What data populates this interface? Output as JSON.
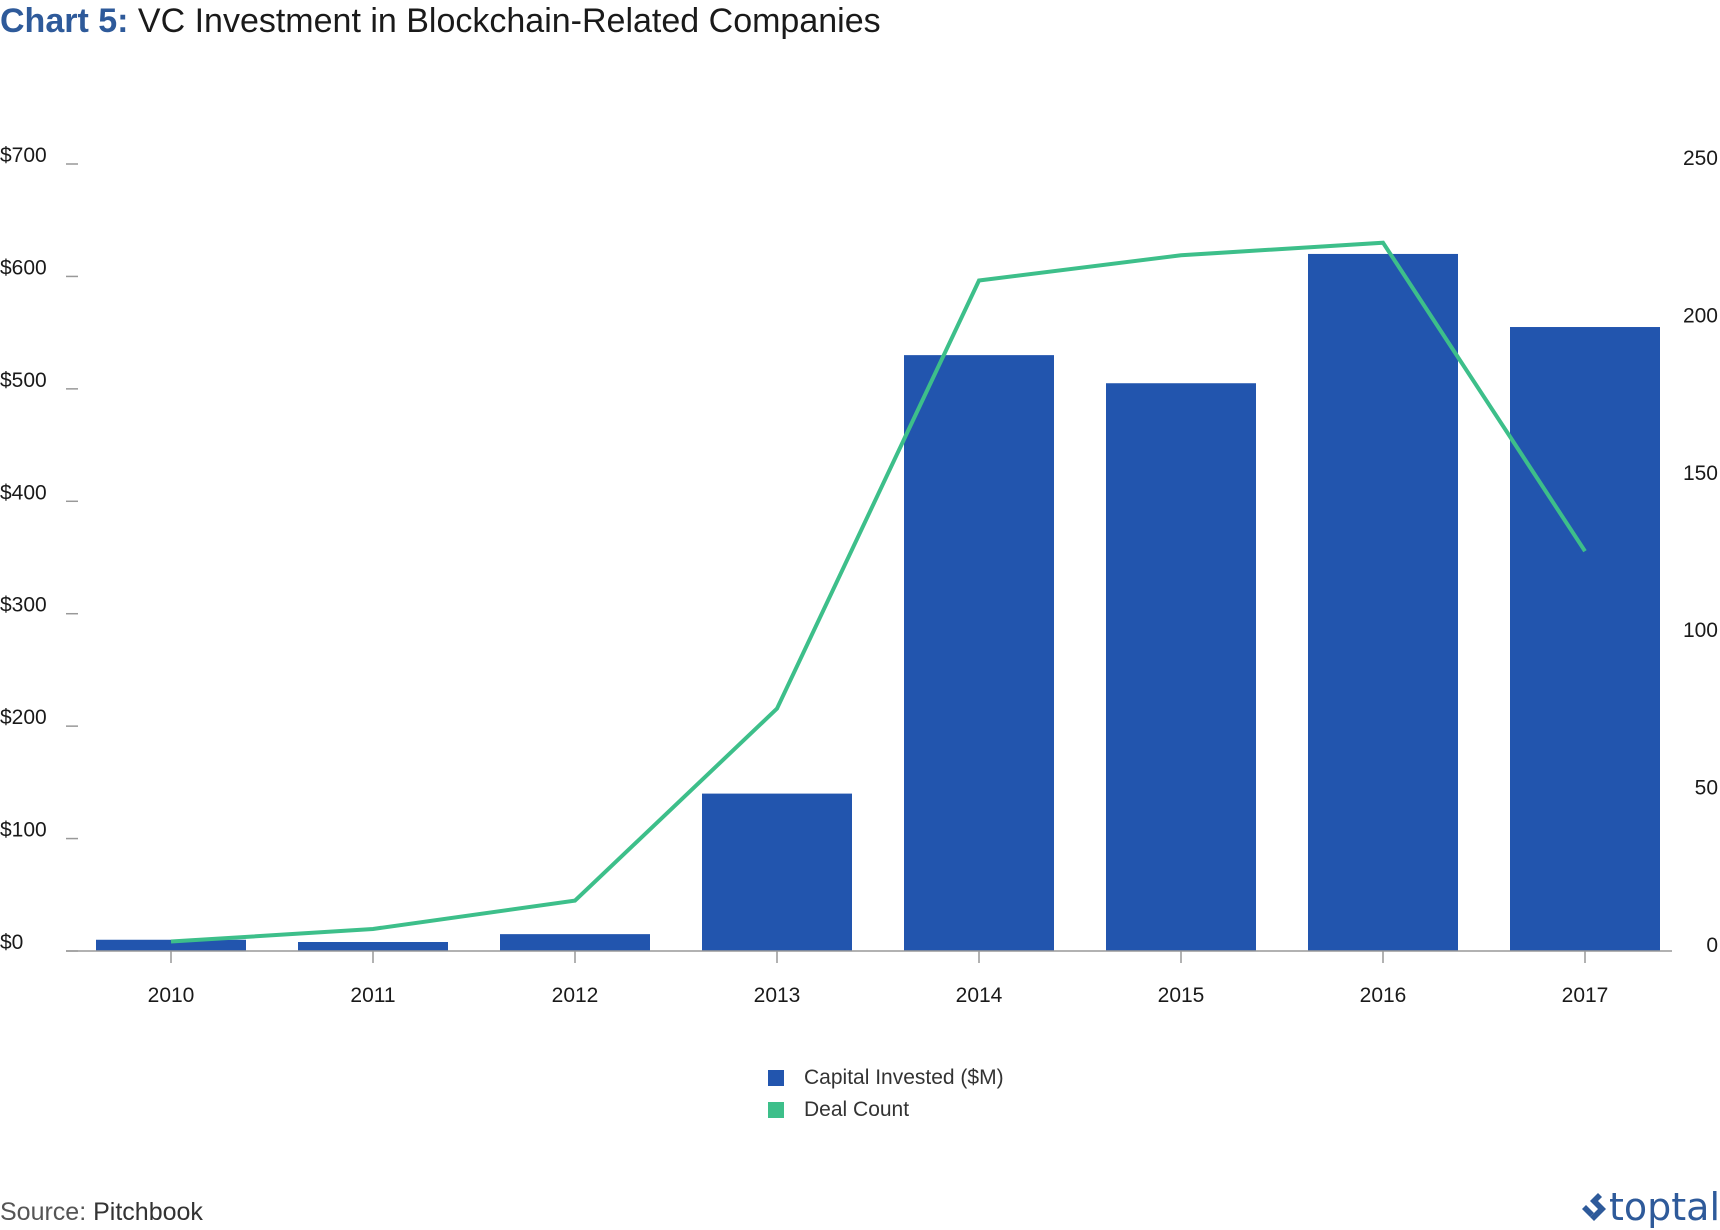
{
  "title": {
    "prefix": "Chart 5:",
    "main": "VC Investment in Blockchain-Related Companies"
  },
  "source": {
    "label": "Source:",
    "value": "Pitchbook"
  },
  "logo": {
    "text": "toptal",
    "icon": "toptal-diamond-icon"
  },
  "colors": {
    "bar": "#2255ae",
    "line": "#3dbf8a",
    "title_prefix": "#2e5a9a",
    "axis": "#999999"
  },
  "chart_data": {
    "type": "bar",
    "categories": [
      "2010",
      "2011",
      "2012",
      "2013",
      "2014",
      "2015",
      "2016",
      "2017"
    ],
    "series": [
      {
        "name": "Capital Invested ($M)",
        "type": "bar",
        "axis": "left",
        "values": [
          10,
          8,
          15,
          140,
          530,
          505,
          620,
          555
        ]
      },
      {
        "name": "Deal Count",
        "type": "line",
        "axis": "right",
        "values": [
          3,
          7,
          16,
          77,
          213,
          221,
          225,
          127
        ]
      }
    ],
    "y_left": {
      "min": 0,
      "max": 700,
      "ticks": [
        0,
        100,
        200,
        300,
        400,
        500,
        600,
        700
      ],
      "tick_labels": [
        "$0",
        "$100",
        "$200",
        "$300",
        "$400",
        "$500",
        "$600",
        "$700"
      ]
    },
    "y_right": {
      "min": 0,
      "max": 250,
      "ticks": [
        0,
        50,
        100,
        150,
        200,
        250
      ],
      "tick_labels": [
        "0",
        "50",
        "100",
        "150",
        "200",
        "250"
      ]
    },
    "legend": {
      "placement": "bottom-center",
      "entries": [
        "Capital Invested ($M)",
        "Deal Count"
      ]
    },
    "grid": false
  }
}
